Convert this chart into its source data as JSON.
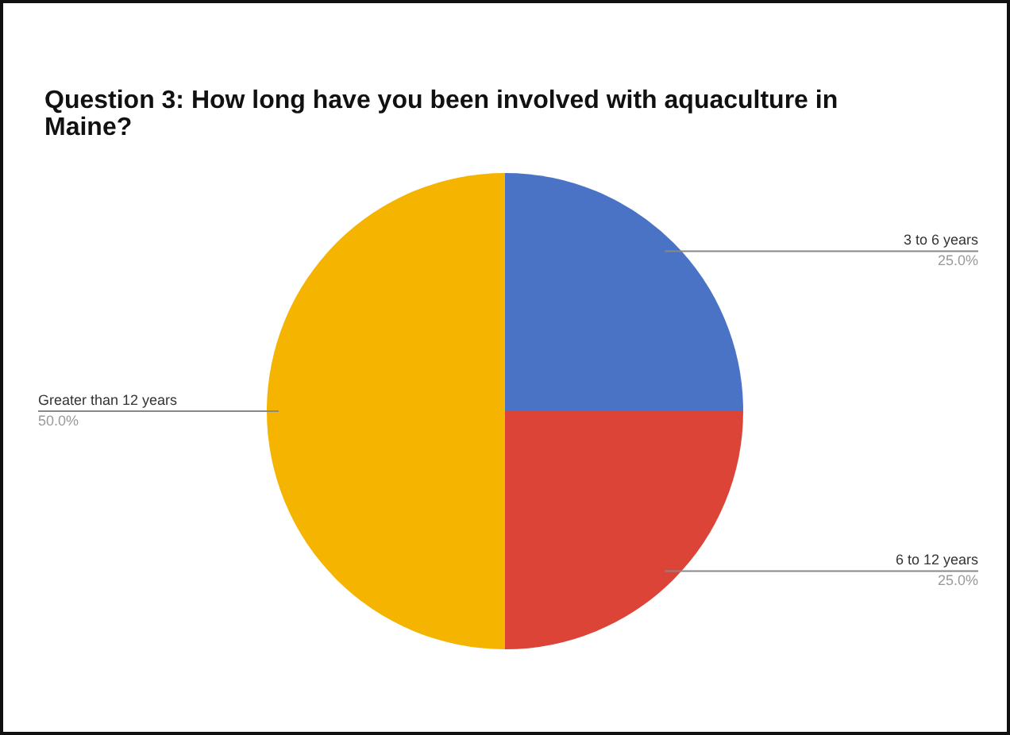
{
  "chart_data": {
    "type": "pie",
    "title": "Question 3: How long have you been involved with aquaculture in Maine?",
    "categories": [
      "3 to 6 years",
      "6 to 12 years",
      "Greater than 12 years"
    ],
    "values": [
      25,
      25,
      50
    ],
    "colors": [
      "#4a73c6",
      "#dc4437",
      "#f4b400"
    ],
    "value_labels": [
      "25.0%",
      "25.0%",
      "50.0%"
    ],
    "legend": false
  }
}
